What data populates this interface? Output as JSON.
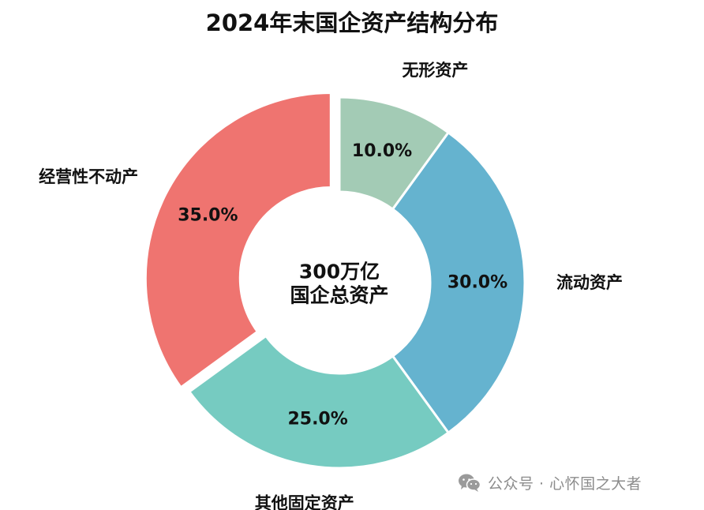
{
  "chart_data": {
    "type": "pie",
    "variant": "donut",
    "title": "2024年末国企资产结构分布",
    "center_label": [
      "300万亿",
      "国企总资产"
    ],
    "slices": [
      {
        "name": "无形资产",
        "value": 10.0,
        "label": "10.0%",
        "color": "#a3cbb5",
        "explode": false
      },
      {
        "name": "流动资产",
        "value": 30.0,
        "label": "30.0%",
        "color": "#65b3cf",
        "explode": false
      },
      {
        "name": "其他固定资产",
        "value": 25.0,
        "label": "25.0%",
        "color": "#76cbc1",
        "explode": false
      },
      {
        "name": "经营性不动产",
        "value": 35.0,
        "label": "35.0%",
        "color": "#ef7470",
        "explode": true
      }
    ]
  },
  "watermark": {
    "text": "公众号 · 心怀国之大者",
    "icon": "wechat-icon",
    "color": "#8c8c8c"
  }
}
